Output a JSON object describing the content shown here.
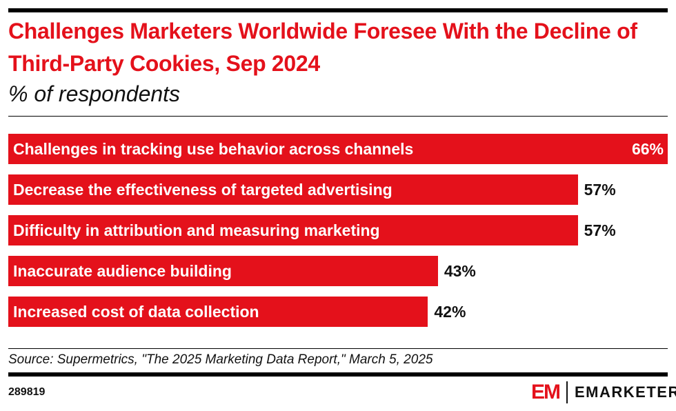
{
  "chart_data": {
    "type": "bar",
    "orientation": "horizontal",
    "title": "Challenges Marketers Worldwide Foresee With the Decline of Third-Party Cookies, Sep 2024",
    "subtitle": "% of respondents",
    "categories": [
      "Challenges in tracking use behavior across channels",
      "Decrease the effectiveness of targeted advertising",
      "Difficulty in attribution and measuring marketing",
      "Inaccurate audience building",
      "Increased cost of data collection"
    ],
    "values": [
      66,
      57,
      57,
      43,
      42
    ],
    "value_labels": [
      "66%",
      "57%",
      "57%",
      "43%",
      "42%"
    ],
    "xlim": [
      0,
      66
    ],
    "grid": false,
    "bar_color": "#e4111b"
  },
  "footer": {
    "source": "Source: Supermetrics, \"The 2025 Marketing Data Report,\" March 5, 2025",
    "chart_id": "289819",
    "logo_mark": "EM",
    "logo_text": "EMARKETER"
  }
}
